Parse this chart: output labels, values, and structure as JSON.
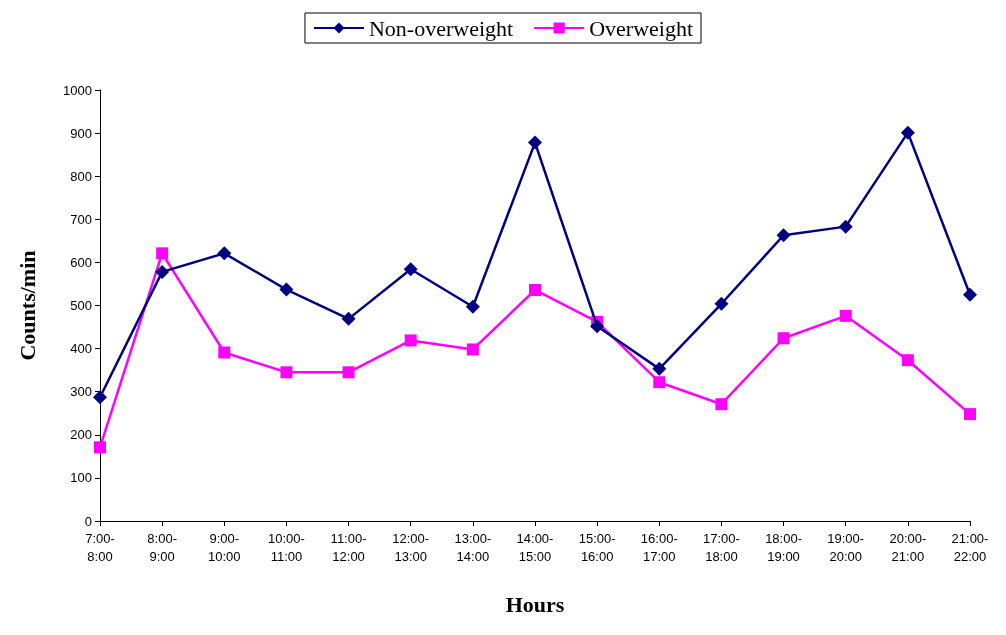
{
  "chart_data": {
    "type": "line",
    "xlabel": "Hours",
    "ylabel": "Counts/min",
    "categories": [
      "7:00-8:00",
      "8:00-9:00",
      "9:00-10:00",
      "10:00-11:00",
      "11:00-12:00",
      "12:00-13:00",
      "13:00-14:00",
      "14:00-15:00",
      "15:00-16:00",
      "16:00-17:00",
      "17:00-18:00",
      "18:00-19:00",
      "19:00-20:00",
      "20:00-21:00",
      "21:00-22:00"
    ],
    "series": [
      {
        "name": "Non-overweight",
        "color": "#000080",
        "marker": "diamond",
        "values": [
          287,
          578,
          621,
          537,
          469,
          584,
          497,
          878,
          452,
          353,
          504,
          663,
          683,
          901,
          525
        ]
      },
      {
        "name": "Overweight",
        "color": "#ff00ff",
        "marker": "square",
        "values": [
          171,
          621,
          391,
          345,
          345,
          419,
          398,
          536,
          462,
          322,
          271,
          424,
          476,
          373,
          248
        ]
      }
    ],
    "ylim": [
      0,
      1000
    ],
    "yticks": [
      0,
      100,
      200,
      300,
      400,
      500,
      600,
      700,
      800,
      900,
      1000
    ],
    "grid": false,
    "legend": "top",
    "line_style": "solid"
  }
}
